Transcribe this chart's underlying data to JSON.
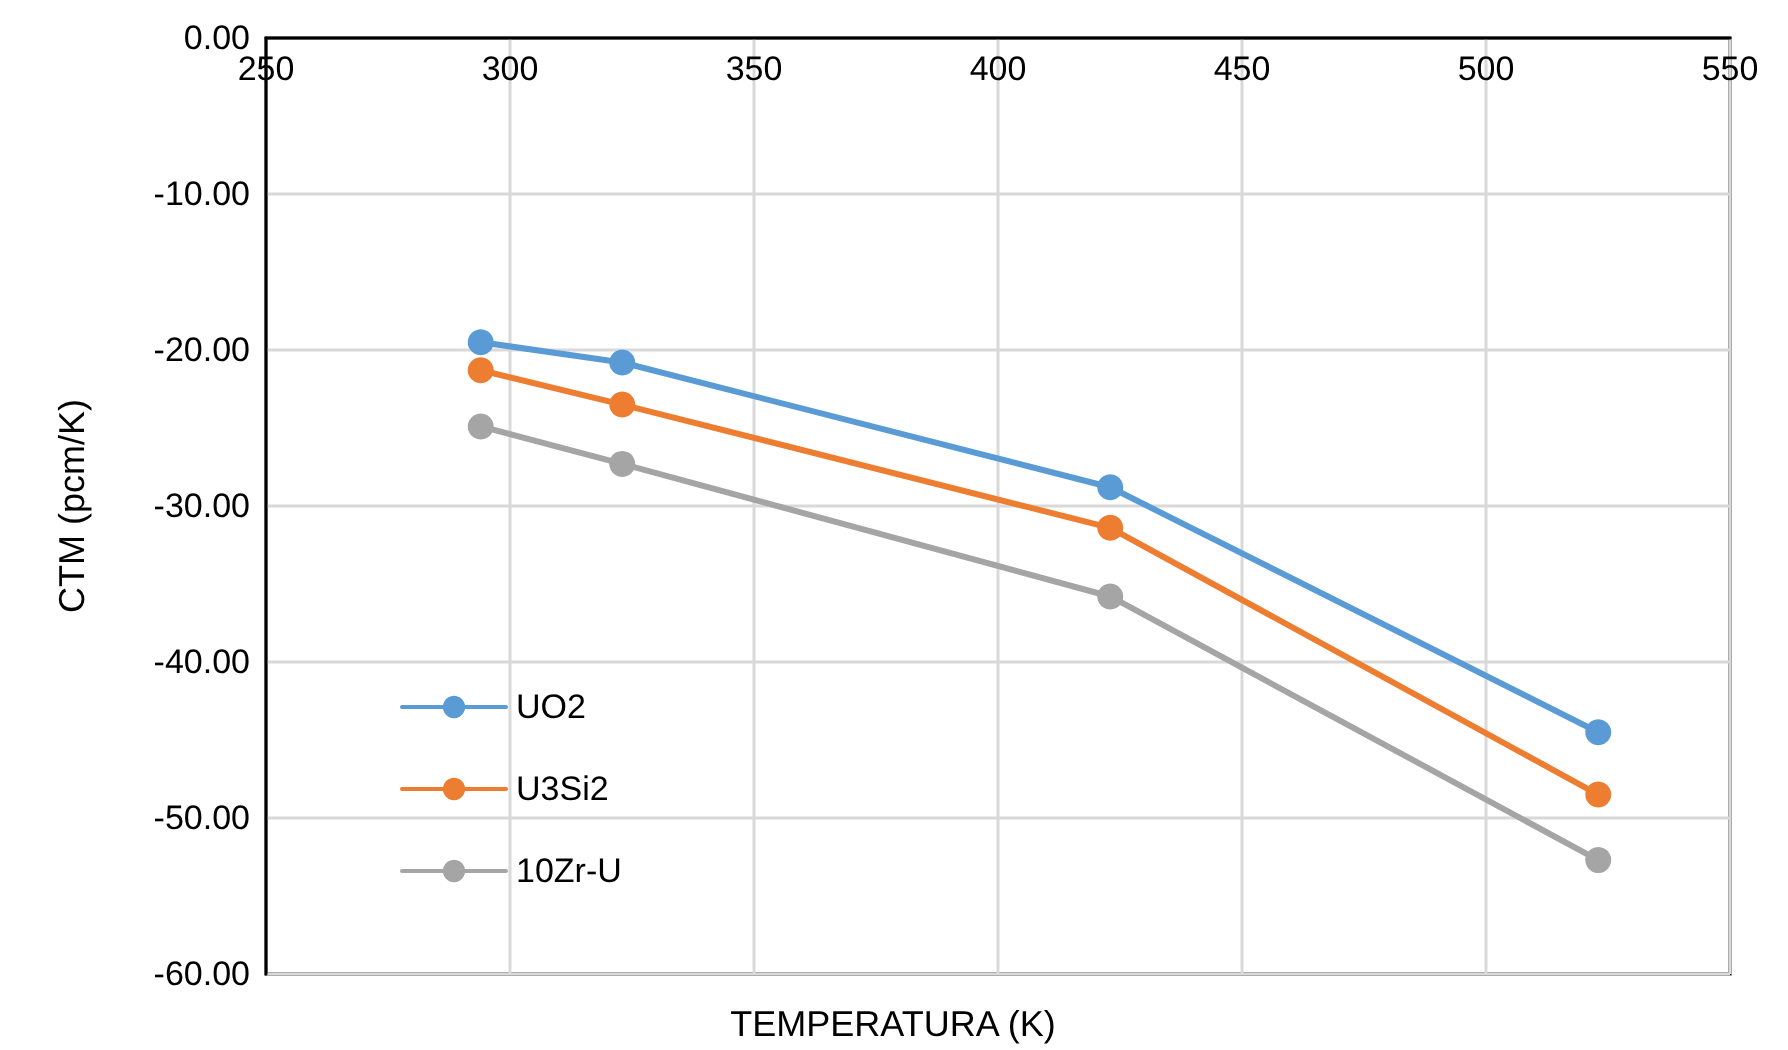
{
  "chart_data": {
    "type": "line",
    "xlabel": "TEMPERATURA (K)",
    "ylabel": "CTM (pcm/K)",
    "x": [
      294,
      323,
      423,
      523
    ],
    "series": [
      {
        "name": "UO2",
        "color": "#5b9bd5",
        "values": [
          -19.5,
          -20.8,
          -28.8,
          -44.5
        ]
      },
      {
        "name": "U3Si2",
        "color": "#ed7d31",
        "values": [
          -21.3,
          -23.5,
          -31.4,
          -48.5
        ]
      },
      {
        "name": "10Zr-U",
        "color": "#a5a5a5",
        "values": [
          -24.9,
          -27.3,
          -35.8,
          -52.7
        ]
      }
    ],
    "xlim": [
      250,
      550
    ],
    "xticks": [
      250,
      300,
      350,
      400,
      450,
      500,
      550
    ],
    "ylim": [
      -60,
      0
    ],
    "yticks": [
      {
        "value": -60,
        "label": "-60.00"
      },
      {
        "value": -50,
        "label": "-50.00"
      },
      {
        "value": -40,
        "label": "-40.00"
      },
      {
        "value": -30,
        "label": "-30.00"
      },
      {
        "value": -20,
        "label": "-20.00"
      },
      {
        "value": -10,
        "label": "-10.00"
      },
      {
        "value": 0,
        "label": "0.00"
      }
    ],
    "grid": true,
    "legend": "bottom left",
    "marker": "circle",
    "line_style": "solid"
  }
}
